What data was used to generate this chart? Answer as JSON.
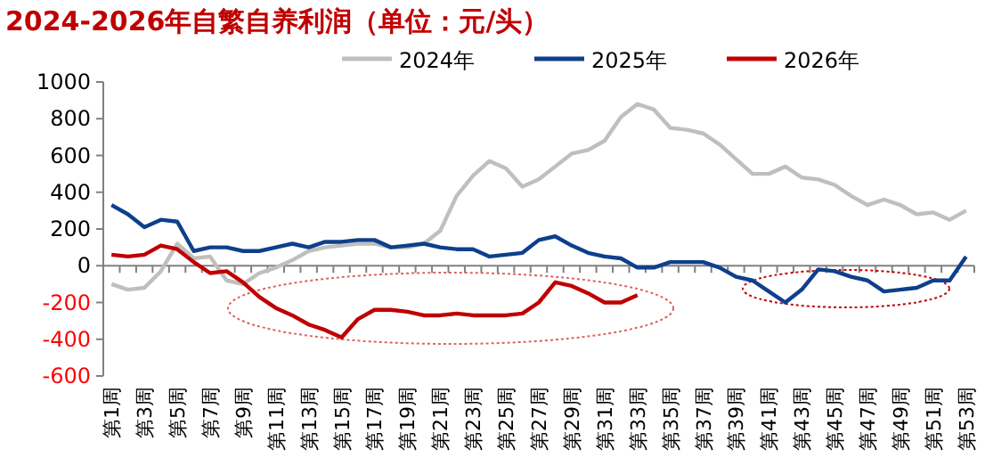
{
  "chart_data": {
    "type": "line",
    "title": "2024-2026年自繁自养利润（单位：元/头）",
    "categories": [
      "第1周",
      null,
      "第3周",
      null,
      "第5周",
      null,
      "第7周",
      null,
      "第9周",
      null,
      "第11周",
      null,
      "第13周",
      null,
      "第15周",
      null,
      "第17周",
      null,
      "第19周",
      null,
      "第21周",
      null,
      "第23周",
      null,
      "第25周",
      null,
      "第27周",
      null,
      "第29周",
      null,
      "第31周",
      null,
      "第33周",
      null,
      "第35周",
      null,
      "第37周",
      null,
      "第39周",
      null,
      "第41周",
      null,
      "第43周",
      null,
      "第45周",
      null,
      "第47周",
      null,
      "第49周",
      null,
      "第51周",
      null,
      "第53周"
    ],
    "series": [
      {
        "name": "2024年",
        "color": "#bfbfbf",
        "values": [
          -100,
          -130,
          -120,
          -30,
          120,
          40,
          50,
          -80,
          -100,
          -40,
          -10,
          30,
          80,
          100,
          110,
          120,
          120,
          100,
          100,
          120,
          190,
          380,
          490,
          570,
          530,
          430,
          470,
          540,
          610,
          630,
          680,
          810,
          880,
          850,
          750,
          740,
          720,
          660,
          580,
          500,
          500,
          540,
          480,
          470,
          440,
          380,
          330,
          360,
          330,
          280,
          290,
          250,
          300
        ]
      },
      {
        "name": "2025年",
        "color": "#0e3f8c",
        "values": [
          330,
          280,
          210,
          250,
          240,
          80,
          100,
          100,
          80,
          80,
          100,
          120,
          100,
          130,
          130,
          140,
          140,
          100,
          110,
          120,
          100,
          90,
          90,
          50,
          60,
          70,
          140,
          160,
          110,
          70,
          50,
          40,
          -10,
          -10,
          20,
          20,
          20,
          -10,
          -60,
          -80,
          -140,
          -200,
          -130,
          -20,
          -30,
          -60,
          -80,
          -140,
          -130,
          -120,
          -80,
          -80,
          50
        ]
      },
      {
        "name": "2026年",
        "color": "#c00000",
        "values": [
          60,
          50,
          60,
          110,
          90,
          20,
          -40,
          -30,
          -90,
          -170,
          -230,
          -270,
          -320,
          -350,
          -390,
          -290,
          -240,
          -240,
          -250,
          -270,
          -270,
          -260,
          -270,
          -270,
          -270,
          -260,
          -200,
          -90,
          -110,
          -150,
          -200,
          -200,
          -160,
          null,
          null,
          null,
          null,
          null,
          null,
          null,
          null,
          null,
          null,
          null,
          null,
          null,
          null,
          null,
          null,
          null,
          null,
          null,
          null
        ]
      }
    ],
    "ylim": [
      -600,
      1000
    ],
    "yticks": [
      -600,
      -400,
      -200,
      0,
      200,
      400,
      600,
      800,
      1000
    ],
    "legend": "top",
    "marker": "none",
    "line_style": "solid"
  }
}
